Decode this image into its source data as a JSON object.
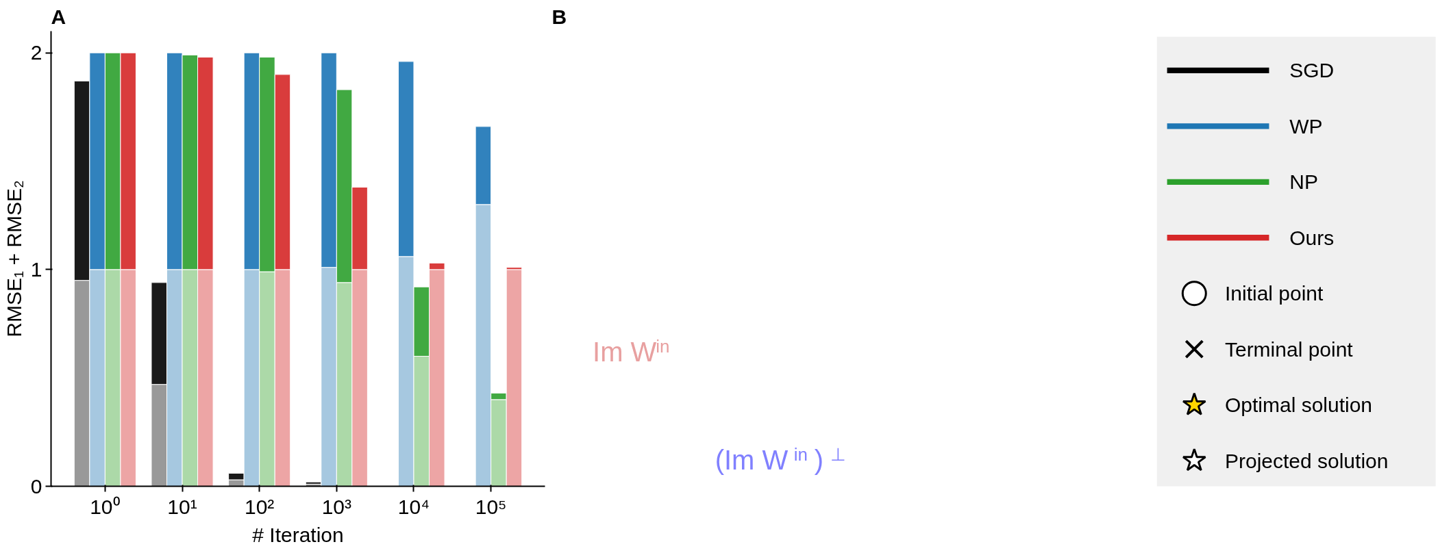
{
  "chart_data": [
    {
      "type": "bar",
      "title": "A",
      "xlabel": "# Iteration",
      "ylabel": "RMSE₁ + RMSE₂",
      "categories": [
        "10⁰",
        "10¹",
        "10²",
        "10³",
        "10⁴",
        "10⁵"
      ],
      "ylim": [
        0,
        2.1
      ],
      "yticks": [
        0,
        1,
        2
      ],
      "series": [
        {
          "color": "#999999",
          "values": [
            0.95,
            0.47,
            0.03,
            0.01,
            null,
            null
          ],
          "base": [
            0,
            0,
            0,
            0,
            null,
            null
          ]
        },
        {
          "color": "#1a1a1a",
          "values": [
            0.92,
            0.47,
            0.03,
            0.01,
            null,
            null
          ],
          "base": [
            0.95,
            0.47,
            0.03,
            0.01,
            null,
            null
          ]
        },
        {
          "color": "#a6c8e0",
          "values": [
            1.0,
            1.0,
            1.0,
            1.01,
            1.06,
            1.3
          ],
          "base": [
            0,
            0,
            0,
            0,
            0,
            0
          ]
        },
        {
          "color": "#3182bd",
          "values": [
            1.0,
            1.0,
            1.0,
            0.99,
            0.9,
            0.36
          ],
          "base": [
            1.0,
            1.0,
            1.0,
            1.01,
            1.06,
            1.3
          ]
        },
        {
          "color": "#acd9a8",
          "values": [
            1.0,
            1.0,
            0.99,
            0.94,
            0.6,
            0.4
          ],
          "base": [
            0,
            0,
            0,
            0,
            0,
            0
          ]
        },
        {
          "color": "#41a942",
          "values": [
            1.0,
            0.99,
            0.99,
            0.89,
            0.32,
            0.03
          ],
          "base": [
            1.0,
            1.0,
            0.99,
            0.94,
            0.6,
            0.4
          ]
        },
        {
          "color": "#eda5a5",
          "values": [
            1.0,
            1.0,
            1.0,
            1.0,
            1.0,
            1.0
          ],
          "base": [
            0,
            0,
            0,
            0,
            0,
            0
          ]
        },
        {
          "color": "#d93c3c",
          "values": [
            1.0,
            0.98,
            0.9,
            0.38,
            0.03,
            0.01
          ],
          "base": [
            1.0,
            1.0,
            1.0,
            1.0,
            1.0,
            1.0
          ]
        }
      ]
    },
    {
      "type": "other",
      "title": "B",
      "legend": "right",
      "annotations": [
        "Im W$^{in}$",
        "(Im W$^{in}$)$^{⊥}$"
      ],
      "series": [
        {
          "name": "SGD",
          "color": "#000000",
          "marker": "none"
        },
        {
          "name": "WP",
          "color": "#1f77b4",
          "marker": "none"
        },
        {
          "name": "NP",
          "color": "#2ca02c",
          "marker": "none"
        },
        {
          "name": "Ours",
          "color": "#d62728",
          "marker": "none"
        },
        {
          "name": "Initial point",
          "color": "#ffffff",
          "marker": "circle"
        },
        {
          "name": "Terminal point",
          "color": "#000000",
          "marker": "cross"
        },
        {
          "name": "Optimal solution",
          "color": "#ffd700",
          "marker": "star"
        },
        {
          "name": "Projected solution",
          "color": "#ffffff",
          "marker": "star"
        }
      ]
    }
  ]
}
